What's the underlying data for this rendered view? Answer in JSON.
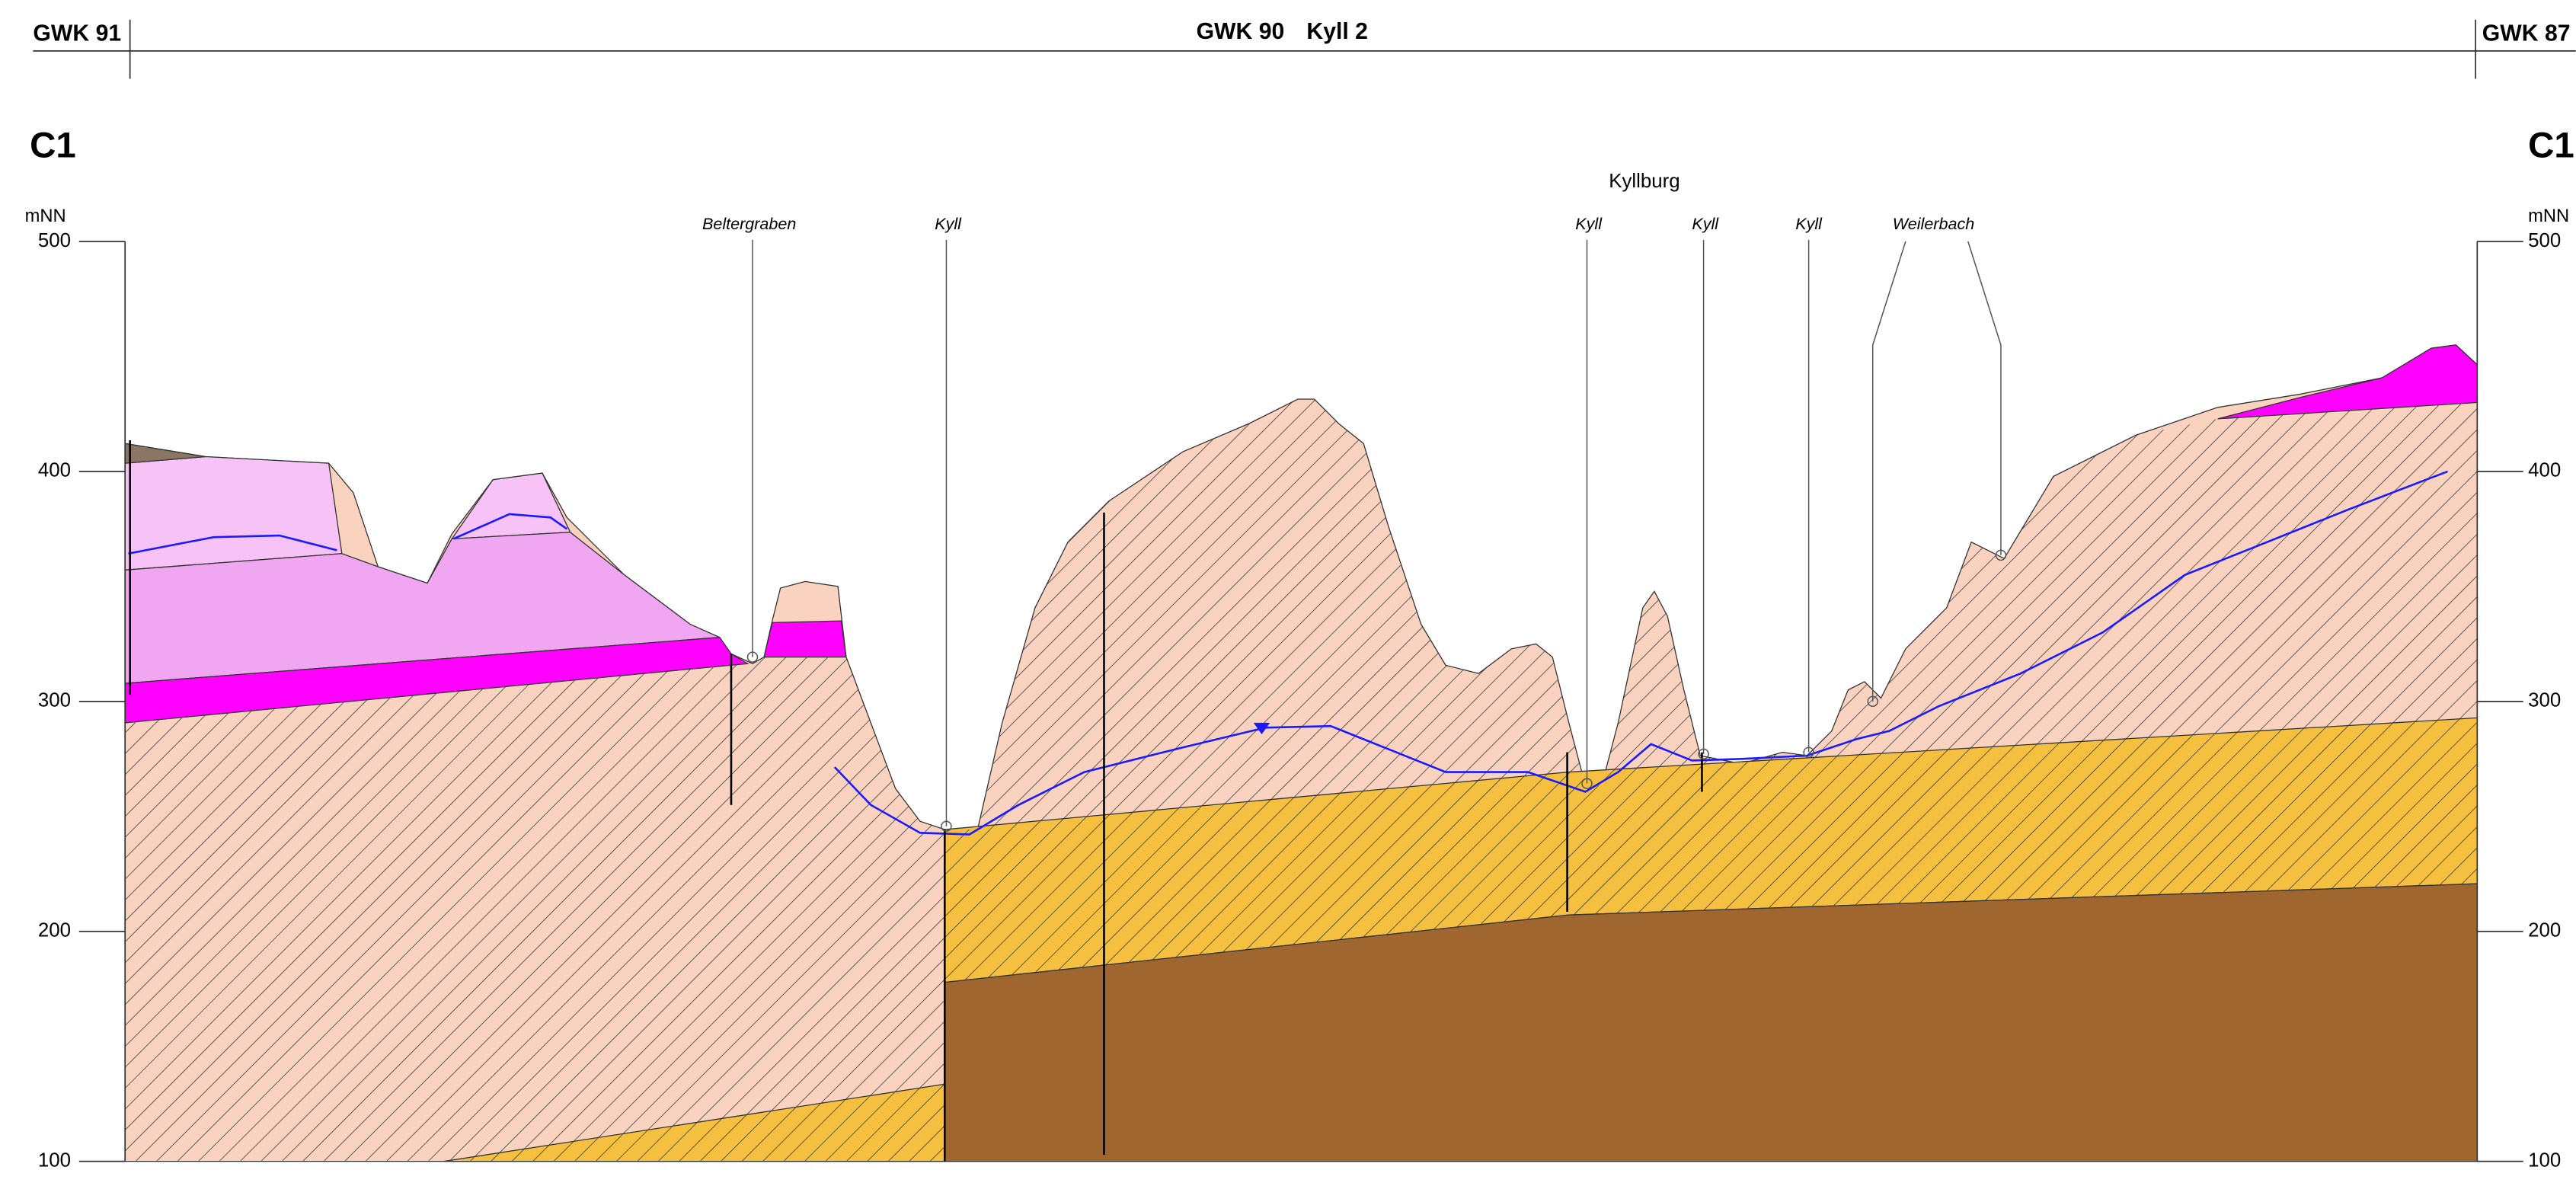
{
  "header": {
    "left": "GWK 91",
    "center": [
      "GWK 90",
      "Kyll 2"
    ],
    "right": "GWK 87"
  },
  "section": {
    "left": "C1",
    "right": "C1"
  },
  "axis": {
    "unit": "mNN",
    "ylim": [
      100,
      500
    ],
    "yticks": [
      100,
      200,
      300,
      400,
      500
    ]
  },
  "place": "Kyllburg",
  "streams": [
    "Beltergraben",
    "Kyll",
    "Kyll",
    "Kyll",
    "Kyll",
    "Weilerbach"
  ]
}
